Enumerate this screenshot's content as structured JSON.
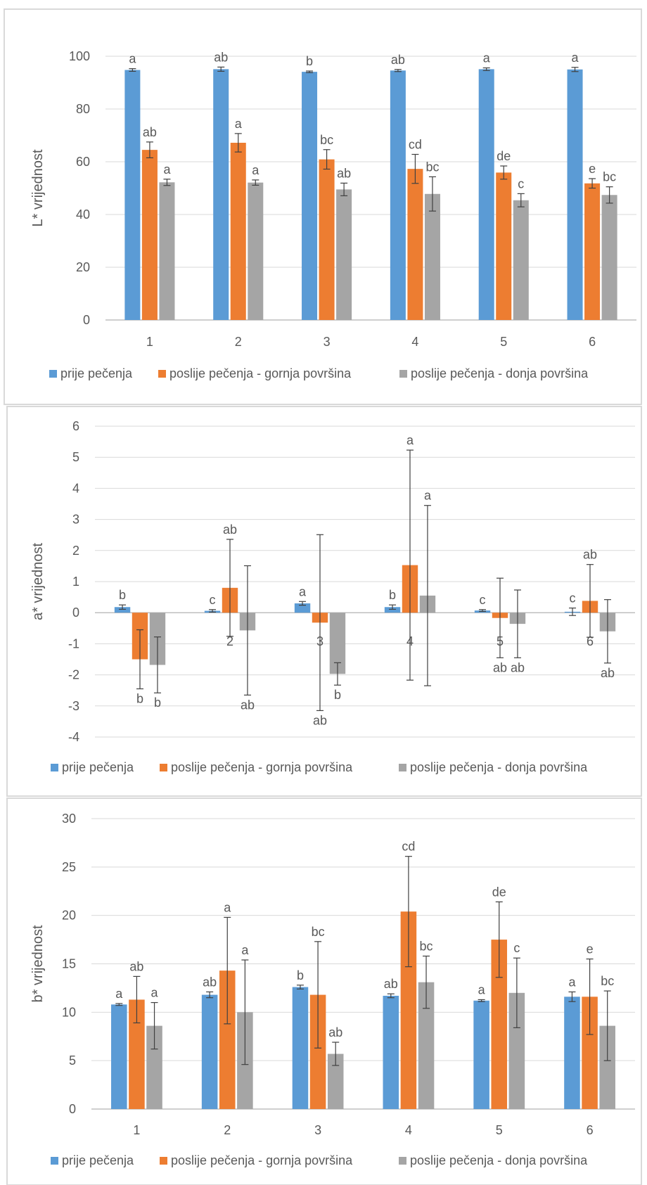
{
  "chart_data": [
    {
      "type": "bar",
      "ylabel": "L* vrijednost",
      "ylim": [
        0,
        100
      ],
      "yticks": [
        0,
        20,
        40,
        60,
        80,
        100
      ],
      "categories": [
        "1",
        "2",
        "3",
        "4",
        "5",
        "6"
      ],
      "grid": true,
      "legend_position": "bottom",
      "series": [
        {
          "name": "prije pečenja",
          "color": "#5B9BD5",
          "values": [
            94.8,
            95.1,
            94.1,
            94.6,
            95.1,
            95.0
          ],
          "errors": [
            0.5,
            0.8,
            0.3,
            0.4,
            0.5,
            0.8
          ],
          "labels": [
            "a",
            "ab",
            "b",
            "ab",
            "a",
            "a"
          ]
        },
        {
          "name": "poslije pečenja - gornja površina",
          "color": "#ED7D31",
          "values": [
            64.5,
            67.2,
            60.9,
            57.3,
            55.9,
            51.8
          ],
          "errors": [
            3.0,
            3.5,
            3.7,
            5.5,
            2.5,
            1.8
          ],
          "labels": [
            "ab",
            "a",
            "bc",
            "cd",
            "de",
            "e"
          ]
        },
        {
          "name": "poslije pečenja - donja površina",
          "color": "#A5A5A5",
          "values": [
            52.2,
            52.1,
            49.5,
            47.8,
            45.4,
            47.4
          ],
          "errors": [
            1.2,
            1.0,
            2.4,
            6.5,
            2.5,
            3.1
          ],
          "labels": [
            "a",
            "a",
            "ab",
            "bc",
            "c",
            "bc"
          ]
        }
      ]
    },
    {
      "type": "bar",
      "ylabel": "a* vrijednost",
      "ylim": [
        -4,
        6
      ],
      "yticks": [
        -4,
        -3,
        -2,
        -1,
        0,
        1,
        2,
        3,
        4,
        5,
        6
      ],
      "categories": [
        "1",
        "2",
        "3",
        "4",
        "5",
        "6"
      ],
      "grid": true,
      "legend_position": "bottom",
      "series": [
        {
          "name": "prije pečenja",
          "color": "#5B9BD5",
          "values": [
            0.18,
            0.06,
            0.3,
            0.18,
            0.07,
            0.03
          ],
          "errors": [
            0.07,
            0.04,
            0.06,
            0.07,
            0.03,
            0.12
          ],
          "labels": [
            "b",
            "c",
            "a",
            "b",
            "c",
            "c"
          ]
        },
        {
          "name": "poslije pečenja - gornja površina",
          "color": "#ED7D31",
          "values": [
            -1.5,
            0.8,
            -0.32,
            1.53,
            -0.17,
            0.38
          ],
          "errors": [
            0.95,
            1.56,
            2.83,
            3.7,
            1.28,
            1.17
          ],
          "labels": [
            "b",
            "ab",
            "ab",
            "a",
            "ab",
            "ab"
          ]
        },
        {
          "name": "poslije pečenja - donja površina",
          "color": "#A5A5A5",
          "values": [
            -1.68,
            -0.57,
            -1.97,
            0.55,
            -0.36,
            -0.6
          ],
          "errors": [
            0.9,
            2.08,
            0.36,
            2.9,
            1.09,
            1.02
          ],
          "labels": [
            "b",
            "ab",
            "b",
            "a",
            "ab",
            "ab"
          ]
        }
      ]
    },
    {
      "type": "bar",
      "ylabel": "b* vrijednost",
      "ylim": [
        0,
        30
      ],
      "yticks": [
        0,
        5,
        10,
        15,
        20,
        25,
        30
      ],
      "categories": [
        "1",
        "2",
        "3",
        "4",
        "5",
        "6"
      ],
      "grid": true,
      "legend_position": "bottom",
      "series": [
        {
          "name": "prije pečenja",
          "color": "#5B9BD5",
          "values": [
            10.8,
            11.8,
            12.6,
            11.7,
            11.2,
            11.6
          ],
          "errors": [
            0.1,
            0.3,
            0.2,
            0.2,
            0.1,
            0.5
          ],
          "labels": [
            "a",
            "ab",
            "b",
            "ab",
            "a",
            "a"
          ]
        },
        {
          "name": "poslije pečenja - gornja površina",
          "color": "#ED7D31",
          "values": [
            11.3,
            14.3,
            11.8,
            20.4,
            17.5,
            11.6
          ],
          "errors": [
            2.4,
            5.5,
            5.5,
            5.7,
            3.9,
            3.9
          ],
          "labels": [
            "ab",
            "a",
            "bc",
            "cd",
            "de",
            "e"
          ]
        },
        {
          "name": "poslije pečenja - donja površina",
          "color": "#A5A5A5",
          "values": [
            8.6,
            10.0,
            5.7,
            13.1,
            12.0,
            8.6
          ],
          "errors": [
            2.4,
            5.4,
            1.2,
            2.7,
            3.6,
            3.6
          ],
          "labels": [
            "a",
            "a",
            "ab",
            "bc",
            "c",
            "bc"
          ]
        }
      ]
    }
  ]
}
